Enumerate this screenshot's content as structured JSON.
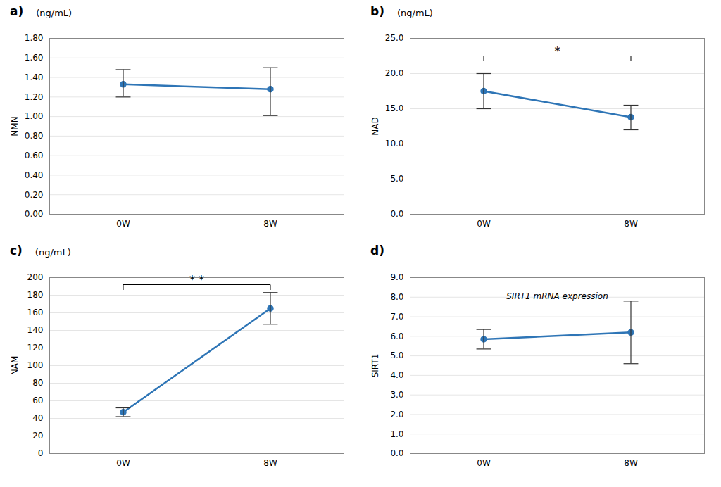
{
  "chart_data": [
    {
      "type": "line",
      "title": "a)",
      "subtitle": "(ng/mL)",
      "ylabel": "NMN",
      "categories": [
        "0W",
        "8W"
      ],
      "values": [
        1.33,
        1.28
      ],
      "error_upper": [
        0.15,
        0.22
      ],
      "error_lower": [
        0.13,
        0.27
      ],
      "ylim": [
        0.0,
        1.8
      ],
      "yticks": [
        {
          "value": 0.0,
          "label": "0.00"
        },
        {
          "value": 0.2,
          "label": "0.20"
        },
        {
          "value": 0.4,
          "label": "0.40"
        },
        {
          "value": 0.6,
          "label": "0.60"
        },
        {
          "value": 0.8,
          "label": "0.80"
        },
        {
          "value": 1.0,
          "label": "1.00"
        },
        {
          "value": 1.2,
          "label": "1.20"
        },
        {
          "value": 1.4,
          "label": "1.40"
        },
        {
          "value": 1.6,
          "label": "1.60"
        },
        {
          "value": 1.8,
          "label": "1.80"
        }
      ],
      "grid": true,
      "color": "#2E75B6",
      "error_color": "#333333",
      "marker": "circle"
    },
    {
      "type": "line",
      "title": "b)",
      "subtitle": "(ng/mL)",
      "ylabel": "NAD",
      "categories": [
        "0W",
        "8W"
      ],
      "values": [
        17.5,
        13.8
      ],
      "error_upper": [
        2.5,
        1.7
      ],
      "error_lower": [
        2.5,
        1.8
      ],
      "ylim": [
        0.0,
        25.0
      ],
      "yticks": [
        {
          "value": 0.0,
          "label": "0.0"
        },
        {
          "value": 5.0,
          "label": "5.0"
        },
        {
          "value": 10.0,
          "label": "10.0"
        },
        {
          "value": 15.0,
          "label": "15.0"
        },
        {
          "value": 20.0,
          "label": "20.0"
        },
        {
          "value": 25.0,
          "label": "25.0"
        }
      ],
      "grid": true,
      "color": "#2E75B6",
      "error_color": "#333333",
      "marker": "circle",
      "bracket": {
        "text": "*",
        "y": 22.5,
        "from": "0W",
        "to": "8W"
      }
    },
    {
      "type": "line",
      "title": "c)",
      "subtitle": "(ng/mL)",
      "ylabel": "NAM",
      "categories": [
        "0W",
        "8W"
      ],
      "values": [
        47.0,
        165.0
      ],
      "error_upper": [
        5.0,
        18.0
      ],
      "error_lower": [
        5.0,
        18.0
      ],
      "ylim": [
        0,
        200
      ],
      "yticks": [
        0,
        20,
        40,
        60,
        80,
        100,
        120,
        140,
        160,
        180,
        200
      ],
      "grid": true,
      "color": "#2E75B6",
      "error_color": "#333333",
      "marker": "circle",
      "bracket": {
        "text": "* *",
        "y": 192,
        "from": "0W",
        "to": "8W"
      }
    },
    {
      "type": "line",
      "title": "d)",
      "ylabel": "SIRT1",
      "annotation": "SIRT1 mRNA expression",
      "categories": [
        "0W",
        "8W"
      ],
      "values": [
        5.85,
        6.2
      ],
      "error_upper": [
        0.5,
        1.6
      ],
      "error_lower": [
        0.5,
        1.6
      ],
      "ylim": [
        0.0,
        9.0
      ],
      "yticks": [
        {
          "value": 0.0,
          "label": "0.0"
        },
        {
          "value": 1.0,
          "label": "1.0"
        },
        {
          "value": 2.0,
          "label": "2.0"
        },
        {
          "value": 3.0,
          "label": "3.0"
        },
        {
          "value": 4.0,
          "label": "4.0"
        },
        {
          "value": 5.0,
          "label": "5.0"
        },
        {
          "value": 6.0,
          "label": "6.0"
        },
        {
          "value": 7.0,
          "label": "7.0"
        },
        {
          "value": 8.0,
          "label": "8.0"
        },
        {
          "value": 9.0,
          "label": "9.0"
        }
      ],
      "grid": true,
      "color": "#2E75B6",
      "error_color": "#333333",
      "marker": "circle"
    }
  ]
}
